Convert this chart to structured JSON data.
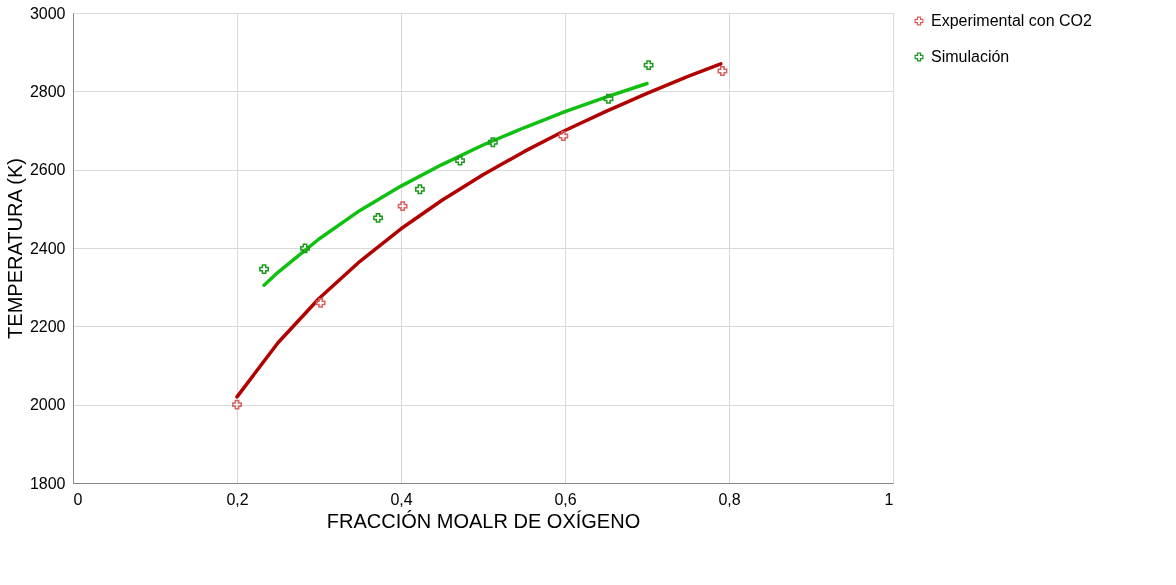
{
  "chart_data": {
    "type": "scatter",
    "xlabel": "FRACCIÓN MOALR DE OXÍGENO",
    "ylabel": "TEMPERATURA (K)",
    "xlim": [
      0,
      1
    ],
    "ylim": [
      1800,
      3000
    ],
    "xticks": [
      0,
      {
        "value": 0.2,
        "label": "0,2"
      },
      {
        "value": 0.4,
        "label": "0,4"
      },
      {
        "value": 0.6,
        "label": "0,6"
      },
      {
        "value": 0.8,
        "label": "0,8"
      },
      1
    ],
    "yticks": [
      1800,
      2000,
      2200,
      2400,
      2600,
      2800,
      3000
    ],
    "grid": true,
    "legend": "right",
    "series": [
      {
        "name": "Experimental con CO2",
        "marker": "cross",
        "color": "#d95f5f",
        "x": [
          0.2,
          0.302,
          0.402,
          0.598,
          0.792
        ],
        "values": [
          2000,
          2260,
          2507,
          2686,
          2852
        ]
      },
      {
        "name": "Simulación",
        "marker": "cross",
        "color": "#1a9a1a",
        "x": [
          0.233,
          0.283,
          0.372,
          0.423,
          0.472,
          0.512,
          0.653,
          0.702
        ],
        "values": [
          2346,
          2399,
          2477,
          2550,
          2623,
          2670,
          2781,
          2867
        ]
      },
      {
        "type": "line",
        "color": "#b00000",
        "x": [
          0.2,
          0.25,
          0.3,
          0.35,
          0.4,
          0.45,
          0.5,
          0.55,
          0.6,
          0.65,
          0.7,
          0.75,
          0.79
        ],
        "values": [
          2020,
          2158,
          2271,
          2366,
          2449,
          2522,
          2587,
          2646,
          2700,
          2749,
          2795,
          2838,
          2870
        ]
      },
      {
        "type": "line",
        "color": "#10c010",
        "x": [
          0.233,
          0.25,
          0.3,
          0.35,
          0.4,
          0.45,
          0.5,
          0.55,
          0.6,
          0.65,
          0.7
        ],
        "values": [
          2305,
          2338,
          2423,
          2496,
          2558,
          2613,
          2663,
          2707,
          2748,
          2785,
          2820
        ]
      }
    ]
  }
}
